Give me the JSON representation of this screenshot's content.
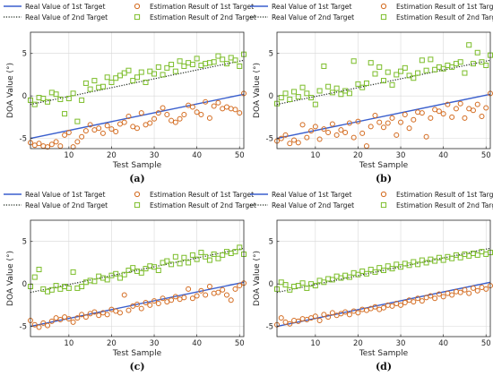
{
  "styles": {
    "real1_color": "#3a5fcd",
    "real2_color": "#1f2a1f",
    "est1_color": "#d36a1e",
    "est2_color": "#7cbd2a"
  },
  "chart_data": [
    {
      "type": "scatter",
      "caption": "(a)",
      "xlabel": "Test Sample",
      "ylabel": "DOA Value (°)",
      "xlim": [
        1,
        51
      ],
      "ylim": [
        -6.2,
        7.5
      ],
      "xticks": [
        10,
        20,
        30,
        40,
        50
      ],
      "yticks": [
        -5,
        0,
        5
      ],
      "grid": true,
      "legend": "top",
      "series": [
        {
          "name": "Real Value of 1st Target",
          "kind": "line",
          "x": [
            1,
            51
          ],
          "y": [
            -5,
            0.2
          ]
        },
        {
          "name": "Real Value of 2nd Target",
          "kind": "dotted",
          "x": [
            1,
            51
          ],
          "y": [
            -1,
            4.2
          ]
        },
        {
          "name": "Estimation Result of 1st Target",
          "kind": "circle",
          "x": [
            1,
            2,
            3,
            4,
            5,
            6,
            7,
            8,
            9,
            10,
            11,
            12,
            13,
            14,
            15,
            16,
            17,
            18,
            19,
            20,
            21,
            22,
            23,
            24,
            25,
            26,
            27,
            28,
            29,
            30,
            31,
            32,
            33,
            34,
            35,
            36,
            37,
            38,
            39,
            40,
            41,
            42,
            43,
            44,
            45,
            46,
            47,
            48,
            49,
            50,
            51
          ],
          "y": [
            -5.5,
            -5.8,
            -5.6,
            -5.9,
            -6.0,
            -5.7,
            -5.4,
            -5.9,
            -4.6,
            -4.3,
            -6.0,
            -5.4,
            -4.8,
            -4.1,
            -3.4,
            -4.0,
            -3.8,
            -4.4,
            -3.5,
            -3.9,
            -4.2,
            -3.3,
            -3.1,
            -2.4,
            -3.6,
            -3.8,
            -2.0,
            -3.4,
            -3.2,
            -2.7,
            -2.0,
            -1.4,
            -2.2,
            -2.9,
            -3.1,
            -2.7,
            -2.2,
            -1.1,
            -1.3,
            -1.9,
            -2.2,
            -0.7,
            -2.6,
            -1.2,
            -0.8,
            -1.5,
            -1.3,
            -1.5,
            -1.6,
            -2.0,
            0.3
          ]
        },
        {
          "name": "Estimation Result of 2nd Target",
          "kind": "square",
          "x": [
            1,
            2,
            3,
            4,
            5,
            6,
            7,
            8,
            9,
            10,
            11,
            12,
            13,
            14,
            15,
            16,
            17,
            18,
            19,
            20,
            21,
            22,
            23,
            24,
            25,
            26,
            27,
            28,
            29,
            30,
            31,
            32,
            33,
            34,
            35,
            36,
            37,
            38,
            39,
            40,
            41,
            42,
            43,
            44,
            45,
            46,
            47,
            48,
            49,
            50,
            51
          ],
          "y": [
            -0.5,
            -1.0,
            -0.2,
            -0.3,
            -0.7,
            0.4,
            0.2,
            -0.4,
            -2.1,
            -0.3,
            0.3,
            -3.0,
            -0.5,
            1.5,
            0.8,
            1.8,
            1.0,
            1.1,
            2.2,
            1.6,
            2.1,
            2.4,
            2.7,
            3.0,
            1.8,
            2.2,
            2.8,
            1.6,
            2.9,
            2.6,
            3.4,
            2.5,
            3.3,
            3.7,
            2.9,
            4.1,
            3.5,
            3.9,
            3.7,
            4.4,
            3.6,
            3.8,
            3.9,
            4.0,
            4.7,
            4.3,
            3.8,
            4.5,
            4.2,
            3.5,
            4.9
          ]
        }
      ]
    },
    {
      "type": "scatter",
      "caption": "(b)",
      "xlabel": "Test Sample",
      "ylabel": "DOA Value (°)",
      "xlim": [
        1,
        51
      ],
      "ylim": [
        -6.2,
        7.5
      ],
      "xticks": [
        10,
        20,
        30,
        40,
        50
      ],
      "yticks": [
        -5,
        0,
        5
      ],
      "grid": true,
      "legend": "top",
      "series": [
        {
          "name": "Real Value of 1st Target",
          "kind": "line",
          "x": [
            1,
            51
          ],
          "y": [
            -5,
            0.2
          ]
        },
        {
          "name": "Real Value of 2nd Target",
          "kind": "dotted",
          "x": [
            1,
            51
          ],
          "y": [
            -1,
            4.2
          ]
        },
        {
          "name": "Estimation Result of 1st Target",
          "kind": "circle",
          "x": [
            1,
            2,
            3,
            4,
            5,
            6,
            7,
            8,
            9,
            10,
            11,
            12,
            13,
            14,
            15,
            16,
            17,
            18,
            19,
            20,
            21,
            22,
            23,
            24,
            25,
            26,
            27,
            28,
            29,
            30,
            31,
            32,
            33,
            34,
            35,
            36,
            37,
            38,
            39,
            40,
            41,
            42,
            43,
            44,
            45,
            46,
            47,
            48,
            49,
            50,
            51
          ],
          "y": [
            -5.3,
            -5.0,
            -4.6,
            -5.6,
            -5.2,
            -5.5,
            -3.4,
            -4.9,
            -4.1,
            -3.6,
            -5.1,
            -3.9,
            -4.3,
            -3.3,
            -4.6,
            -4.0,
            -4.3,
            -3.2,
            -4.9,
            -3.0,
            -4.4,
            -5.9,
            -3.6,
            -2.3,
            -3.1,
            -3.7,
            -3.2,
            -2.6,
            -4.6,
            -3.1,
            -2.2,
            -3.8,
            -2.8,
            -1.9,
            -2.0,
            -4.8,
            -2.6,
            -1.6,
            -1.8,
            -2.1,
            -1.0,
            -2.5,
            -1.5,
            -0.9,
            -2.6,
            -1.5,
            -1.7,
            -1.0,
            -2.4,
            -1.4,
            0.3
          ]
        },
        {
          "name": "Estimation Result of 2nd Target",
          "kind": "square",
          "x": [
            1,
            2,
            3,
            4,
            5,
            6,
            7,
            8,
            9,
            10,
            11,
            12,
            13,
            14,
            15,
            16,
            17,
            18,
            19,
            20,
            21,
            22,
            23,
            24,
            25,
            26,
            27,
            28,
            29,
            30,
            31,
            32,
            33,
            34,
            35,
            36,
            37,
            38,
            39,
            40,
            41,
            42,
            43,
            44,
            45,
            46,
            47,
            48,
            49,
            50,
            51
          ],
          "y": [
            -0.9,
            -0.2,
            0.3,
            -0.4,
            0.5,
            -0.1,
            1.0,
            0.3,
            -0.2,
            -1.0,
            0.6,
            3.5,
            1.1,
            0.4,
            0.9,
            0.2,
            0.6,
            0.3,
            4.1,
            1.4,
            1.0,
            1.5,
            3.9,
            2.6,
            3.4,
            1.8,
            2.8,
            1.3,
            2.5,
            2.9,
            3.3,
            2.4,
            2.1,
            2.7,
            4.2,
            3.0,
            4.3,
            3.1,
            3.4,
            3.2,
            3.6,
            3.4,
            3.8,
            4.0,
            2.7,
            6.0,
            3.8,
            5.1,
            4.0,
            3.6,
            4.8
          ]
        }
      ]
    },
    {
      "type": "scatter",
      "caption": "(c)",
      "xlabel": "Test Sample",
      "ylabel": "DOA Value (°)",
      "xlim": [
        1,
        51
      ],
      "ylim": [
        -6.2,
        7.5
      ],
      "xticks": [
        10,
        20,
        30,
        40,
        50
      ],
      "yticks": [
        -5,
        0,
        5
      ],
      "grid": true,
      "legend": "top",
      "series": [
        {
          "name": "Real Value of 1st Target",
          "kind": "line",
          "x": [
            1,
            51
          ],
          "y": [
            -5,
            0.2
          ]
        },
        {
          "name": "Real Value of 2nd Target",
          "kind": "dotted",
          "x": [
            1,
            51
          ],
          "y": [
            -1,
            4.2
          ]
        },
        {
          "name": "Estimation Result of 1st Target",
          "kind": "circle",
          "x": [
            1,
            2,
            3,
            4,
            5,
            6,
            7,
            8,
            9,
            10,
            11,
            12,
            13,
            14,
            15,
            16,
            17,
            18,
            19,
            20,
            21,
            22,
            23,
            24,
            25,
            26,
            27,
            28,
            29,
            30,
            31,
            32,
            33,
            34,
            35,
            36,
            37,
            38,
            39,
            40,
            41,
            42,
            43,
            44,
            45,
            46,
            47,
            48,
            49,
            50,
            51
          ],
          "y": [
            -4.3,
            -4.8,
            -5.1,
            -4.6,
            -4.9,
            -4.4,
            -4.0,
            -4.2,
            -3.9,
            -4.1,
            -4.5,
            -4.0,
            -3.6,
            -3.9,
            -3.5,
            -3.3,
            -3.7,
            -3.4,
            -3.6,
            -3.0,
            -3.2,
            -3.4,
            -1.3,
            -3.1,
            -2.6,
            -2.4,
            -2.9,
            -2.2,
            -2.5,
            -2.0,
            -2.3,
            -1.7,
            -2.1,
            -1.9,
            -1.5,
            -1.8,
            -1.6,
            -0.6,
            -1.7,
            -1.4,
            -0.8,
            -1.3,
            -0.3,
            -1.1,
            -1.0,
            -0.7,
            -1.3,
            -1.9,
            -0.6,
            -0.2,
            0.1
          ]
        },
        {
          "name": "Estimation Result of 2nd Target",
          "kind": "square",
          "x": [
            1,
            2,
            3,
            4,
            5,
            6,
            7,
            8,
            9,
            10,
            11,
            12,
            13,
            14,
            15,
            16,
            17,
            18,
            19,
            20,
            21,
            22,
            23,
            24,
            25,
            26,
            27,
            28,
            29,
            30,
            31,
            32,
            33,
            34,
            35,
            36,
            37,
            38,
            39,
            40,
            41,
            42,
            43,
            44,
            45,
            46,
            47,
            48,
            49,
            50,
            51
          ],
          "y": [
            -0.3,
            0.8,
            1.7,
            -0.6,
            -0.9,
            -0.7,
            -0.2,
            -0.6,
            -0.3,
            -0.5,
            1.4,
            -0.5,
            -0.3,
            0.2,
            0.4,
            0.3,
            0.9,
            0.7,
            0.5,
            1.0,
            1.2,
            0.7,
            1.1,
            1.6,
            1.9,
            1.5,
            1.3,
            1.8,
            2.1,
            2.0,
            1.6,
            2.5,
            2.7,
            2.3,
            3.2,
            2.4,
            3.1,
            2.5,
            3.4,
            2.9,
            3.7,
            3.2,
            2.8,
            3.5,
            3.0,
            3.4,
            3.8,
            3.6,
            3.8,
            4.3,
            3.5
          ]
        }
      ]
    },
    {
      "type": "scatter",
      "caption": "(d)",
      "xlabel": "Test Sample",
      "ylabel": "DOA Value (°)",
      "xlim": [
        1,
        51
      ],
      "ylim": [
        -6.2,
        7.5
      ],
      "xticks": [
        10,
        20,
        30,
        40,
        50
      ],
      "yticks": [
        -5,
        0,
        5
      ],
      "grid": true,
      "legend": "top",
      "series": [
        {
          "name": "Real Value of 1st Target",
          "kind": "line",
          "x": [
            1,
            51
          ],
          "y": [
            -5,
            0.2
          ]
        },
        {
          "name": "Real Value of 2nd Target",
          "kind": "dotted",
          "x": [
            1,
            51
          ],
          "y": [
            -1,
            4.2
          ]
        },
        {
          "name": "Estimation Result of 1st Target",
          "kind": "circle",
          "x": [
            1,
            2,
            3,
            4,
            5,
            6,
            7,
            8,
            9,
            10,
            11,
            12,
            13,
            14,
            15,
            16,
            17,
            18,
            19,
            20,
            21,
            22,
            23,
            24,
            25,
            26,
            27,
            28,
            29,
            30,
            31,
            32,
            33,
            34,
            35,
            36,
            37,
            38,
            39,
            40,
            41,
            42,
            43,
            44,
            45,
            46,
            47,
            48,
            49,
            50,
            51
          ],
          "y": [
            -4.8,
            -4.0,
            -4.5,
            -4.7,
            -4.3,
            -4.4,
            -4.1,
            -4.2,
            -4.0,
            -3.8,
            -4.3,
            -3.6,
            -3.9,
            -3.4,
            -3.7,
            -3.5,
            -3.3,
            -3.6,
            -3.2,
            -3.4,
            -3.0,
            -3.1,
            -2.9,
            -2.7,
            -3.0,
            -2.8,
            -2.5,
            -2.6,
            -2.3,
            -2.5,
            -2.2,
            -1.9,
            -2.1,
            -1.7,
            -2.0,
            -1.6,
            -1.4,
            -1.7,
            -1.2,
            -1.5,
            -1.1,
            -1.3,
            -0.9,
            -1.0,
            -0.7,
            -1.1,
            -0.5,
            -0.8,
            -0.4,
            -0.6,
            -0.2
          ]
        },
        {
          "name": "Estimation Result of 2nd Target",
          "kind": "square",
          "x": [
            1,
            2,
            3,
            4,
            5,
            6,
            7,
            8,
            9,
            10,
            11,
            12,
            13,
            14,
            15,
            16,
            17,
            18,
            19,
            20,
            21,
            22,
            23,
            24,
            25,
            26,
            27,
            28,
            29,
            30,
            31,
            32,
            33,
            34,
            35,
            36,
            37,
            38,
            39,
            40,
            41,
            42,
            43,
            44,
            45,
            46,
            47,
            48,
            49,
            50,
            51
          ],
          "y": [
            -0.6,
            0.2,
            -0.1,
            -0.7,
            -0.3,
            -0.2,
            0.1,
            -0.5,
            0.0,
            -0.2,
            0.4,
            0.2,
            0.6,
            0.5,
            0.9,
            0.7,
            1.0,
            0.8,
            1.3,
            1.1,
            1.5,
            1.2,
            1.7,
            1.4,
            1.9,
            1.6,
            2.1,
            1.8,
            2.3,
            2.0,
            2.4,
            2.2,
            2.6,
            2.3,
            2.8,
            2.5,
            2.9,
            2.7,
            3.1,
            2.8,
            3.2,
            3.0,
            3.4,
            3.1,
            3.5,
            3.3,
            3.6,
            3.4,
            3.8,
            3.5,
            3.7
          ]
        }
      ]
    }
  ]
}
